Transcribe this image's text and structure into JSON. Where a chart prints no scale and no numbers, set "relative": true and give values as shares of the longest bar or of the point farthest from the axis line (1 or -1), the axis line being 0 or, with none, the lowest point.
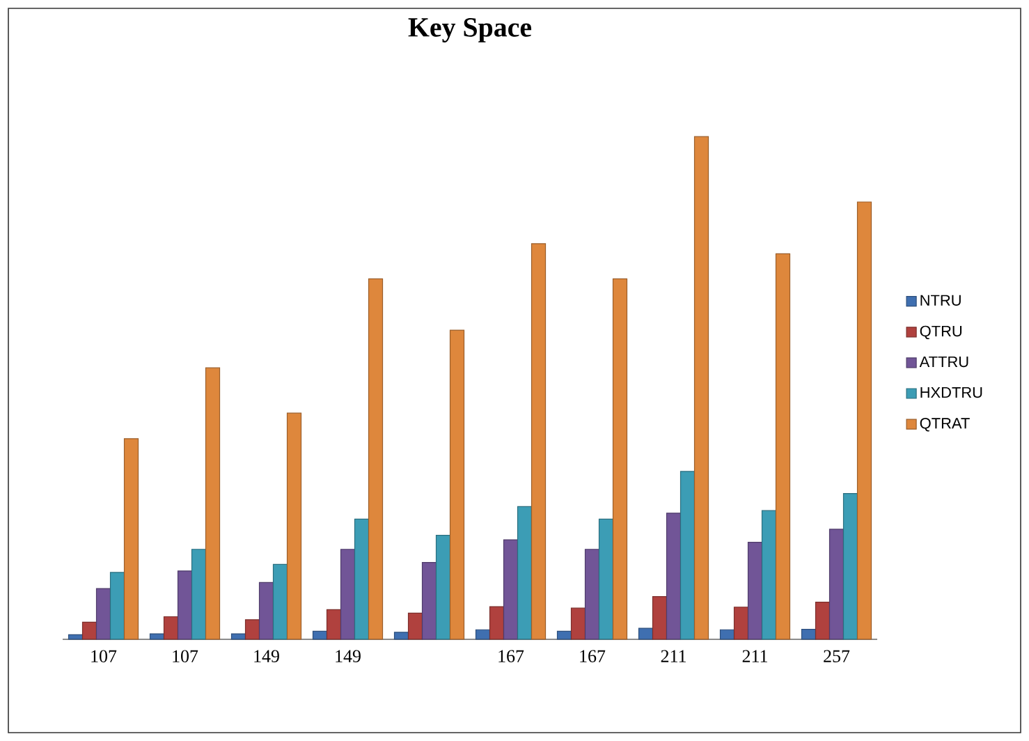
{
  "chart_data": {
    "type": "bar",
    "title": "Key Space",
    "relative": true,
    "legend": "right",
    "categories": [
      "107",
      "107",
      "149",
      "149",
      null,
      "167",
      "167",
      "211",
      "211",
      "257"
    ],
    "series": [
      {
        "name": "NTRU",
        "color": "#3f6fb0",
        "values": [
          0.009,
          0.011,
          0.011,
          0.016,
          0.014,
          0.019,
          0.016,
          0.022,
          0.019,
          0.02
        ]
      },
      {
        "name": "QTRU",
        "color": "#b0413e",
        "values": [
          0.034,
          0.045,
          0.039,
          0.059,
          0.052,
          0.065,
          0.062,
          0.085,
          0.064,
          0.074
        ]
      },
      {
        "name": "ATTRU",
        "color": "#715597",
        "values": [
          0.101,
          0.136,
          0.113,
          0.179,
          0.153,
          0.198,
          0.179,
          0.251,
          0.193,
          0.219
        ]
      },
      {
        "name": "HXDTRU",
        "color": "#3c9db5",
        "values": [
          0.133,
          0.179,
          0.149,
          0.239,
          0.207,
          0.264,
          0.239,
          0.334,
          0.256,
          0.29
        ]
      },
      {
        "name": "QTRAT",
        "color": "#de873c",
        "values": [
          0.399,
          0.54,
          0.45,
          0.717,
          0.615,
          0.787,
          0.717,
          1,
          0.767,
          0.87
        ]
      }
    ]
  }
}
